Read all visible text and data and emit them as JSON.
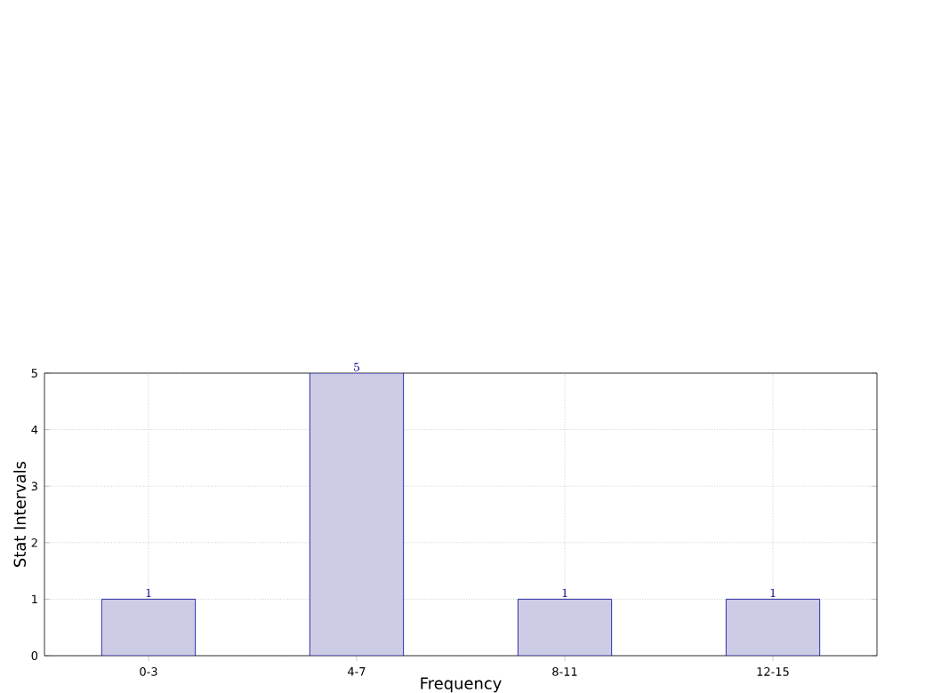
{
  "chart_data": {
    "type": "bar",
    "xlabel": "Frequency",
    "ylabel": "Stat Intervals",
    "categories": [
      "0-3",
      "4-7",
      "8-11",
      "12-15"
    ],
    "values": [
      1,
      5,
      1,
      1
    ],
    "color": "#ccccE6",
    "ylim": [
      0,
      5
    ],
    "yticks": [
      0,
      1,
      2,
      3,
      4,
      5
    ],
    "grid": true,
    "data_labels": true
  }
}
